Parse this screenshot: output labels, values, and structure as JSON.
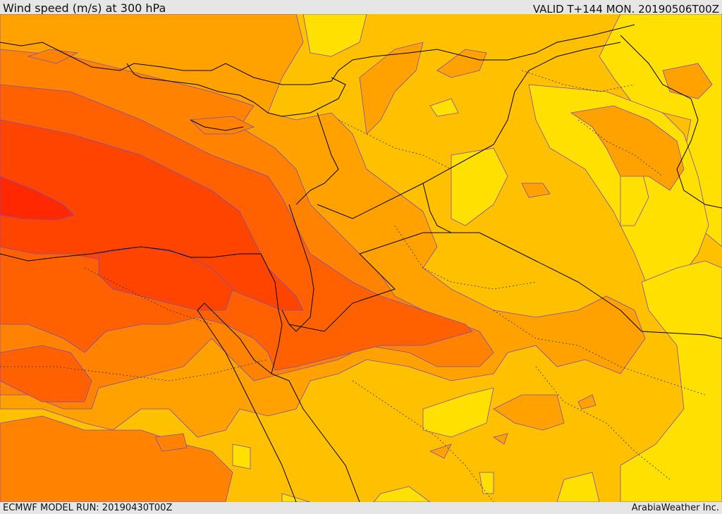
{
  "header": {
    "title": "Wind speed (m/s) at 300 hPa",
    "valid": "VALID T+144 MON. 20190506T00Z"
  },
  "footer": {
    "model_run": "ECMWF MODEL RUN: 20190430T00Z",
    "credit": "ArabiaWeather Inc."
  },
  "colors": {
    "band_1": "#ffe000",
    "band_2": "#ffc000",
    "band_3": "#ffa200",
    "band_4": "#ff8200",
    "band_5": "#ff6100",
    "band_6": "#ff4400",
    "band_7": "#ff2800",
    "contour": "#7a4ec0",
    "coastline": "#000000"
  }
}
